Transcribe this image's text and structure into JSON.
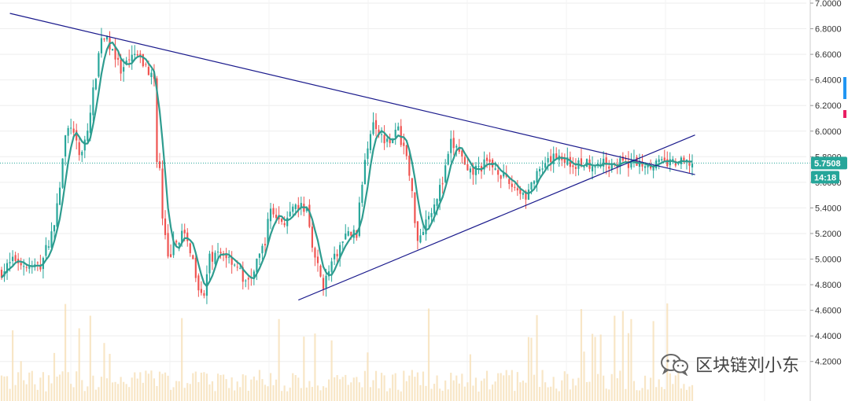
{
  "chart_data": {
    "type": "candlestick",
    "title": "",
    "xlabel": "",
    "ylabel": "",
    "ylim": [
      4.1,
      7.0
    ],
    "y_ticks": [
      "7.0000",
      "6.8000",
      "6.6000",
      "6.4000",
      "6.2000",
      "6.0000",
      "5.8000",
      "5.6000",
      "5.4000",
      "5.2000",
      "5.0000",
      "4.8000",
      "4.6000",
      "4.4000",
      "4.2000"
    ],
    "grid": true,
    "current_price": "5.7508",
    "countdown": "14:18",
    "current_price_value": 5.7508,
    "candle_count": 250,
    "close_path": [
      {
        "i": 0,
        "v": 4.9
      },
      {
        "i": 5,
        "v": 5.0
      },
      {
        "i": 10,
        "v": 4.93
      },
      {
        "i": 14,
        "v": 4.95
      },
      {
        "i": 18,
        "v": 5.2
      },
      {
        "i": 20,
        "v": 5.4
      },
      {
        "i": 23,
        "v": 5.95
      },
      {
        "i": 25,
        "v": 6.05
      },
      {
        "i": 28,
        "v": 5.8
      },
      {
        "i": 31,
        "v": 6.0
      },
      {
        "i": 34,
        "v": 6.45
      },
      {
        "i": 36,
        "v": 6.75
      },
      {
        "i": 40,
        "v": 6.65
      },
      {
        "i": 43,
        "v": 6.45
      },
      {
        "i": 48,
        "v": 6.6
      },
      {
        "i": 52,
        "v": 6.5
      },
      {
        "i": 55,
        "v": 6.4
      },
      {
        "i": 56,
        "v": 5.8
      },
      {
        "i": 57,
        "v": 5.7
      },
      {
        "i": 58,
        "v": 5.3
      },
      {
        "i": 60,
        "v": 5.0
      },
      {
        "i": 62,
        "v": 5.1
      },
      {
        "i": 65,
        "v": 5.2
      },
      {
        "i": 68,
        "v": 5.08
      },
      {
        "i": 71,
        "v": 4.8
      },
      {
        "i": 73,
        "v": 4.73
      },
      {
        "i": 75,
        "v": 5.0
      },
      {
        "i": 80,
        "v": 5.05
      },
      {
        "i": 85,
        "v": 4.95
      },
      {
        "i": 88,
        "v": 4.8
      },
      {
        "i": 91,
        "v": 4.9
      },
      {
        "i": 95,
        "v": 5.15
      },
      {
        "i": 97,
        "v": 5.4
      },
      {
        "i": 100,
        "v": 5.3
      },
      {
        "i": 103,
        "v": 5.3
      },
      {
        "i": 106,
        "v": 5.4
      },
      {
        "i": 110,
        "v": 5.4
      },
      {
        "i": 113,
        "v": 5.0
      },
      {
        "i": 116,
        "v": 4.8
      },
      {
        "i": 119,
        "v": 4.95
      },
      {
        "i": 122,
        "v": 5.1
      },
      {
        "i": 125,
        "v": 5.2
      },
      {
        "i": 128,
        "v": 5.2
      },
      {
        "i": 131,
        "v": 5.8
      },
      {
        "i": 134,
        "v": 6.1
      },
      {
        "i": 137,
        "v": 5.95
      },
      {
        "i": 140,
        "v": 5.95
      },
      {
        "i": 143,
        "v": 6.0
      },
      {
        "i": 146,
        "v": 5.8
      },
      {
        "i": 148,
        "v": 5.5
      },
      {
        "i": 150,
        "v": 5.15
      },
      {
        "i": 153,
        "v": 5.3
      },
      {
        "i": 156,
        "v": 5.45
      },
      {
        "i": 159,
        "v": 5.6
      },
      {
        "i": 162,
        "v": 5.9
      },
      {
        "i": 165,
        "v": 5.85
      },
      {
        "i": 168,
        "v": 5.65
      },
      {
        "i": 171,
        "v": 5.7
      },
      {
        "i": 175,
        "v": 5.75
      },
      {
        "i": 179,
        "v": 5.7
      },
      {
        "i": 182,
        "v": 5.6
      },
      {
        "i": 186,
        "v": 5.55
      },
      {
        "i": 189,
        "v": 5.5
      },
      {
        "i": 192,
        "v": 5.62
      },
      {
        "i": 196,
        "v": 5.72
      },
      {
        "i": 200,
        "v": 5.82
      },
      {
        "i": 203,
        "v": 5.78
      },
      {
        "i": 206,
        "v": 5.73
      },
      {
        "i": 209,
        "v": 5.75
      }
    ],
    "trendlines": [
      {
        "name": "resistance",
        "start": {
          "i": 3,
          "v": 6.92
        },
        "end": {
          "i": 250,
          "v": 5.66
        }
      },
      {
        "name": "support",
        "start": {
          "i": 107,
          "v": 4.68
        },
        "end": {
          "i": 250,
          "v": 5.97
        }
      }
    ],
    "colors": {
      "up": "#26a69a",
      "down": "#ef5350",
      "ma": "#2e9c8f",
      "trendline": "#1a1a8c",
      "price_line": "#26a69a",
      "volume": "#f5deb3",
      "grid": "#eeeeee"
    }
  },
  "watermark": {
    "icon": "wechat-icon",
    "text": "区块链刘小东"
  }
}
